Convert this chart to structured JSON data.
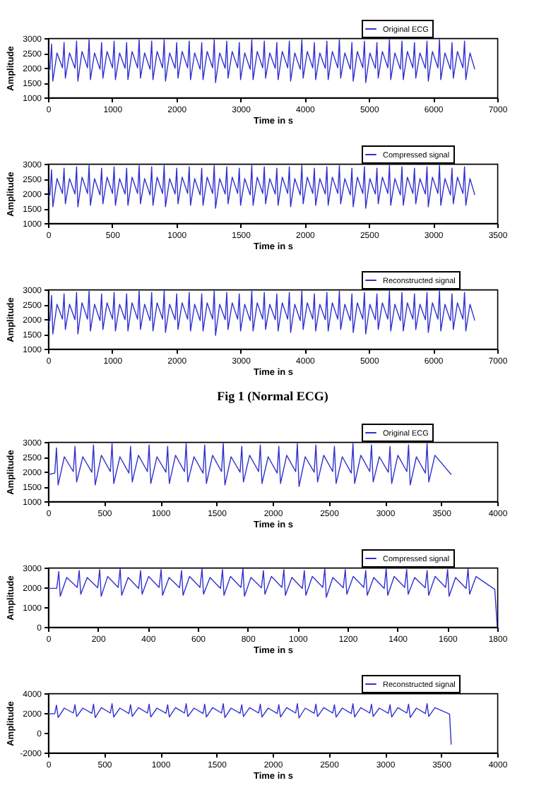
{
  "chart_data": [
    {
      "type": "line",
      "xlabel": "Time in s",
      "ylabel": "Amplitude",
      "xlim": [
        0,
        7000
      ],
      "xticks": [
        0,
        1000,
        2000,
        3000,
        4000,
        5000,
        6000,
        7000
      ],
      "ylim": [
        1000,
        3000
      ],
      "yticks": [
        1000,
        1500,
        2000,
        2500,
        3000
      ],
      "grid": false,
      "legend": "top right",
      "series": [
        {
          "name": "Original ECG",
          "color": "#3030d0",
          "x": [
            0,
            30,
            55,
            75,
            140,
            225,
            250,
            270,
            335,
            420,
            445,
            465,
            530,
            615,
            640,
            660,
            725,
            810,
            835,
            855,
            920,
            1005,
            1030,
            1050,
            1115,
            1200,
            1225,
            1245,
            1310,
            1395,
            1420,
            1440,
            1505,
            1590,
            1615,
            1635,
            1700,
            1785,
            1810,
            1830,
            1895,
            1980,
            2005,
            2025,
            2090,
            2175,
            2200,
            2220,
            2285,
            2370,
            2395,
            2415,
            2480,
            2565,
            2590,
            2610,
            2675,
            2760,
            2785,
            2805,
            2870,
            2955,
            2980,
            3000,
            3065,
            3150,
            3175,
            3195,
            3260,
            3345,
            3370,
            3390,
            3455,
            3540,
            3565,
            3585,
            3650,
            3735,
            3760,
            3780,
            3845,
            3930,
            3955,
            3975,
            4040,
            4125,
            4150,
            4170,
            4235,
            4320,
            4345,
            4365,
            4430,
            4515,
            4540,
            4560,
            4625,
            4710,
            4735,
            4755,
            4820,
            4905,
            4930,
            4950,
            5015,
            5100,
            5125,
            5145,
            5210,
            5295,
            5320,
            5340,
            5405,
            5490,
            5515,
            5535,
            5600,
            5685,
            5710,
            5730,
            5795,
            5880,
            5905,
            5925,
            5990,
            6075,
            6100,
            6120,
            6185,
            6270,
            6295,
            6315,
            6380,
            6465,
            6490,
            6510,
            6575,
            6650
          ],
          "values": [
            1900,
            1950,
            2800,
            1550,
            2500,
            2000,
            2850,
            1650,
            2500,
            1980,
            2900,
            1550,
            2550,
            2000,
            2950,
            1600,
            2500,
            1950,
            2850,
            1650,
            2550,
            2000,
            2900,
            1600,
            2500,
            1980,
            2850,
            1600,
            2550,
            2000,
            2950,
            1650,
            2500,
            1950,
            2900,
            1600,
            2550,
            2000,
            2950,
            1550,
            2500,
            1980,
            2850,
            1650,
            2550,
            2000,
            2900,
            1600,
            2500,
            1950,
            2850,
            1600,
            2550,
            2000,
            2950,
            1500,
            2500,
            1980,
            2900,
            1650,
            2550,
            2000,
            2850,
            1600,
            2500,
            1950,
            2950,
            1600,
            2550,
            2000,
            2900,
            1650,
            2500,
            1980,
            2850,
            1600,
            2550,
            2000,
            2900,
            1550,
            2500,
            1950,
            2950,
            1650,
            2550,
            2000,
            2850,
            1600,
            2500,
            1980,
            2900,
            1600,
            2550,
            2000,
            2950,
            1650,
            2500,
            1950,
            2850,
            1550,
            2550,
            2000,
            2900,
            1500,
            2500,
            1980,
            2850,
            1650,
            2550,
            2000,
            2950,
            1600,
            2500,
            1950,
            2900,
            1600,
            2550,
            2000,
            2850,
            1650,
            2500,
            1980,
            2900,
            1550,
            2550,
            2000,
            2950,
            1600,
            2500,
            1950,
            2850,
            1650,
            2550,
            2000,
            2900,
            1600,
            2500,
            1950
          ]
        }
      ]
    },
    {
      "type": "line",
      "xlabel": "Time in s",
      "ylabel": "Amplitude",
      "xlim": [
        0,
        3500
      ],
      "xticks": [
        0,
        500,
        1000,
        1500,
        2000,
        2500,
        3000,
        3500
      ],
      "ylim": [
        1000,
        3000
      ],
      "yticks": [
        1000,
        1500,
        2000,
        2500,
        3000
      ],
      "grid": false,
      "legend": "top right",
      "series": [
        {
          "name": "Compressed signal",
          "color": "#3030d0",
          "x": [
            0,
            15,
            27.5,
            37.5,
            70,
            112.5,
            125,
            135,
            167.5,
            210,
            222.5,
            232.5,
            265,
            307.5,
            320,
            330,
            362.5,
            405,
            417.5,
            427.5,
            460,
            502.5,
            515,
            525,
            557.5,
            600,
            612.5,
            622.5,
            655,
            697.5,
            710,
            720,
            752.5,
            795,
            807.5,
            817.5,
            850,
            892.5,
            905,
            915,
            947.5,
            990,
            1002.5,
            1012.5,
            1045,
            1087.5,
            1100,
            1110,
            1142.5,
            1185,
            1197.5,
            1207.5,
            1240,
            1282.5,
            1295,
            1305,
            1337.5,
            1380,
            1392.5,
            1402.5,
            1435,
            1477.5,
            1490,
            1500,
            1532.5,
            1575,
            1587.5,
            1597.5,
            1630,
            1672.5,
            1685,
            1695,
            1727.5,
            1770,
            1782.5,
            1792.5,
            1825,
            1867.5,
            1880,
            1890,
            1922.5,
            1965,
            1977.5,
            1987.5,
            2020,
            2062.5,
            2075,
            2085,
            2117.5,
            2160,
            2172.5,
            2182.5,
            2215,
            2257.5,
            2270,
            2280,
            2312.5,
            2355,
            2367.5,
            2377.5,
            2410,
            2452.5,
            2465,
            2475,
            2507.5,
            2550,
            2562.5,
            2572.5,
            2605,
            2647.5,
            2660,
            2670,
            2702.5,
            2745,
            2757.5,
            2767.5,
            2800,
            2842.5,
            2855,
            2865,
            2897.5,
            2940,
            2952.5,
            2962.5,
            2995,
            3037.5,
            3050,
            3060,
            3092.5,
            3135,
            3147.5,
            3157.5,
            3190,
            3232.5,
            3245,
            3255,
            3287.5,
            3325
          ],
          "values": [
            1900,
            1950,
            2800,
            1550,
            2500,
            2000,
            2850,
            1650,
            2500,
            1980,
            2900,
            1550,
            2550,
            2000,
            2950,
            1600,
            2500,
            1950,
            2850,
            1650,
            2550,
            2000,
            2900,
            1600,
            2500,
            1980,
            2850,
            1600,
            2550,
            2000,
            2950,
            1650,
            2500,
            1950,
            2900,
            1600,
            2550,
            2000,
            2950,
            1550,
            2500,
            1980,
            2850,
            1650,
            2550,
            2000,
            2900,
            1600,
            2500,
            1950,
            2850,
            1600,
            2550,
            2000,
            2950,
            1500,
            2500,
            1980,
            2900,
            1650,
            2550,
            2000,
            2850,
            1600,
            2500,
            1950,
            2950,
            1600,
            2550,
            2000,
            2900,
            1650,
            2500,
            1980,
            2850,
            1600,
            2550,
            2000,
            2900,
            1550,
            2500,
            1950,
            2950,
            1650,
            2550,
            2000,
            2850,
            1600,
            2500,
            1980,
            2900,
            1600,
            2550,
            2000,
            2950,
            1650,
            2500,
            1950,
            2850,
            1550,
            2550,
            2000,
            2900,
            1500,
            2500,
            1980,
            2850,
            1650,
            2550,
            2000,
            2950,
            1600,
            2500,
            1950,
            2900,
            1600,
            2550,
            2000,
            2850,
            1650,
            2500,
            1980,
            2900,
            1550,
            2550,
            2000,
            2950,
            1600,
            2500,
            1950,
            2850,
            1650,
            2550,
            2000,
            2900,
            1600,
            2500,
            1950
          ]
        }
      ]
    },
    {
      "type": "line",
      "xlabel": "Time in s",
      "ylabel": "Amplitude",
      "xlim": [
        0,
        7000
      ],
      "xticks": [
        0,
        1000,
        2000,
        3000,
        4000,
        5000,
        6000,
        7000
      ],
      "ylim": [
        1000,
        3000
      ],
      "yticks": [
        1000,
        1500,
        2000,
        2500,
        3000
      ],
      "grid": false,
      "legend": "top right",
      "annotations": [
        "Fig 1 (Normal ECG)"
      ],
      "series": [
        {
          "name": "Reconstructed signal",
          "color": "#3030d0",
          "x": [
            0,
            30,
            55,
            75,
            140,
            225,
            250,
            270,
            335,
            420,
            445,
            465,
            530,
            615,
            640,
            660,
            725,
            810,
            835,
            855,
            920,
            1005,
            1030,
            1050,
            1115,
            1200,
            1225,
            1245,
            1310,
            1395,
            1420,
            1440,
            1505,
            1590,
            1615,
            1635,
            1700,
            1785,
            1810,
            1830,
            1895,
            1980,
            2005,
            2025,
            2090,
            2175,
            2200,
            2220,
            2285,
            2370,
            2395,
            2415,
            2480,
            2565,
            2590,
            2610,
            2675,
            2760,
            2785,
            2805,
            2870,
            2955,
            2980,
            3000,
            3065,
            3150,
            3175,
            3195,
            3260,
            3345,
            3370,
            3390,
            3455,
            3540,
            3565,
            3585,
            3650,
            3735,
            3760,
            3780,
            3845,
            3930,
            3955,
            3975,
            4040,
            4125,
            4150,
            4170,
            4235,
            4320,
            4345,
            4365,
            4430,
            4515,
            4540,
            4560,
            4625,
            4710,
            4735,
            4755,
            4820,
            4905,
            4930,
            4950,
            5015,
            5100,
            5125,
            5145,
            5210,
            5295,
            5320,
            5340,
            5405,
            5490,
            5515,
            5535,
            5600,
            5685,
            5710,
            5730,
            5795,
            5880,
            5905,
            5925,
            5990,
            6075,
            6100,
            6120,
            6185,
            6270,
            6295,
            6315,
            6380,
            6465,
            6490,
            6510,
            6575,
            6650
          ],
          "values": [
            1900,
            1950,
            2800,
            1500,
            2500,
            2000,
            2850,
            1650,
            2500,
            1980,
            2900,
            1500,
            2550,
            2000,
            2950,
            1600,
            2500,
            1950,
            2850,
            1650,
            2550,
            2000,
            2900,
            1600,
            2500,
            1980,
            2850,
            1600,
            2550,
            2000,
            2950,
            1650,
            2500,
            1950,
            2900,
            1600,
            2550,
            2000,
            2950,
            1550,
            2500,
            1980,
            2850,
            1650,
            2550,
            2000,
            2900,
            1600,
            2500,
            1950,
            2850,
            1600,
            2550,
            2000,
            2950,
            1450,
            2500,
            1980,
            2900,
            1650,
            2550,
            2000,
            2850,
            1600,
            2500,
            1950,
            2950,
            1600,
            2550,
            2000,
            2900,
            1650,
            2500,
            1980,
            2850,
            1600,
            2550,
            2000,
            2900,
            1550,
            2500,
            1950,
            2950,
            1650,
            2550,
            2000,
            2850,
            1600,
            2500,
            1980,
            2900,
            1600,
            2550,
            2000,
            2950,
            1650,
            2500,
            1950,
            2850,
            1550,
            2550,
            2000,
            2900,
            1500,
            2500,
            1980,
            2850,
            1650,
            2550,
            2000,
            2950,
            1600,
            2500,
            1950,
            2900,
            1600,
            2550,
            2000,
            2850,
            1650,
            2500,
            1980,
            2900,
            1550,
            2550,
            2000,
            2950,
            1600,
            2500,
            1950,
            2850,
            1650,
            2550,
            2000,
            2900,
            1600,
            2500,
            1950
          ]
        }
      ]
    },
    {
      "type": "line",
      "xlabel": "Time in s",
      "ylabel": "Amplitude",
      "xlim": [
        0,
        4000
      ],
      "xticks": [
        0,
        500,
        1000,
        1500,
        2000,
        2500,
        3000,
        3500,
        4000
      ],
      "ylim": [
        1000,
        3000
      ],
      "yticks": [
        1000,
        1500,
        2000,
        2500,
        3000
      ],
      "grid": false,
      "legend": "top right",
      "series": [
        {
          "name": "Original ECG",
          "color": "#3030d0",
          "x": [
            0,
            60,
            75,
            90,
            145,
            225,
            240,
            255,
            310,
            390,
            405,
            420,
            475,
            555,
            570,
            585,
            640,
            720,
            735,
            750,
            805,
            885,
            900,
            915,
            970,
            1050,
            1065,
            1080,
            1135,
            1215,
            1230,
            1245,
            1300,
            1380,
            1395,
            1410,
            1465,
            1545,
            1560,
            1575,
            1630,
            1710,
            1725,
            1740,
            1795,
            1875,
            1890,
            1905,
            1960,
            2040,
            2055,
            2070,
            2125,
            2205,
            2220,
            2235,
            2290,
            2370,
            2385,
            2400,
            2455,
            2535,
            2550,
            2565,
            2620,
            2700,
            2715,
            2730,
            2785,
            2865,
            2880,
            2895,
            2950,
            3030,
            3045,
            3060,
            3115,
            3195,
            3210,
            3225,
            3280,
            3360,
            3375,
            3390,
            3445,
            3590
          ],
          "values": [
            1900,
            1950,
            2800,
            1550,
            2500,
            2000,
            2850,
            1650,
            2500,
            1980,
            2900,
            1550,
            2550,
            2000,
            2950,
            1600,
            2500,
            1950,
            2850,
            1650,
            2550,
            2000,
            2900,
            1600,
            2500,
            1980,
            2850,
            1600,
            2550,
            2000,
            2950,
            1650,
            2500,
            1950,
            2900,
            1600,
            2550,
            2000,
            2950,
            1550,
            2500,
            1980,
            2850,
            1650,
            2550,
            2000,
            2900,
            1600,
            2500,
            1950,
            2850,
            1600,
            2550,
            2000,
            2950,
            1500,
            2500,
            1980,
            2900,
            1650,
            2550,
            2000,
            2850,
            1600,
            2500,
            1950,
            2950,
            1600,
            2550,
            2000,
            2900,
            1650,
            2500,
            1980,
            2850,
            1600,
            2550,
            2000,
            2900,
            1550,
            2500,
            1950,
            2950,
            1650,
            2550,
            1900
          ]
        }
      ]
    },
    {
      "type": "line",
      "xlabel": "Time in s",
      "ylabel": "Amplitude",
      "xlim": [
        0,
        1800
      ],
      "xticks": [
        0,
        200,
        400,
        600,
        800,
        1000,
        1200,
        1400,
        1600,
        1800
      ],
      "ylim": [
        0,
        3000
      ],
      "yticks": [
        0,
        1000,
        2000,
        3000
      ],
      "grid": false,
      "legend": "top right",
      "series": [
        {
          "name": "Compressed signal",
          "color": "#3030d0",
          "x": [
            0,
            35,
            43,
            49,
            75,
            117,
            125,
            131,
            157,
            199,
            207,
            213,
            239,
            281,
            289,
            295,
            321,
            363,
            371,
            377,
            403,
            445,
            453,
            459,
            485,
            527,
            535,
            541,
            567,
            609,
            617,
            623,
            649,
            691,
            699,
            705,
            731,
            773,
            781,
            787,
            813,
            855,
            863,
            869,
            895,
            937,
            945,
            951,
            977,
            1019,
            1027,
            1033,
            1059,
            1101,
            1109,
            1115,
            1141,
            1183,
            1191,
            1197,
            1223,
            1265,
            1273,
            1279,
            1305,
            1347,
            1355,
            1361,
            1387,
            1429,
            1437,
            1443,
            1469,
            1511,
            1519,
            1525,
            1551,
            1593,
            1601,
            1607,
            1633,
            1675,
            1683,
            1689,
            1715,
            1790,
            1800
          ],
          "values": [
            1950,
            1950,
            2800,
            1550,
            2500,
            2000,
            2850,
            1650,
            2500,
            1980,
            2900,
            1550,
            2550,
            2000,
            2950,
            1600,
            2500,
            1950,
            2850,
            1650,
            2550,
            2000,
            2900,
            1600,
            2500,
            1980,
            2850,
            1600,
            2550,
            2000,
            2950,
            1650,
            2500,
            1950,
            2900,
            1600,
            2550,
            2000,
            2950,
            1550,
            2500,
            1980,
            2850,
            1650,
            2550,
            2000,
            2900,
            1600,
            2500,
            1950,
            2850,
            1600,
            2550,
            2000,
            2950,
            1500,
            2500,
            1980,
            2900,
            1650,
            2550,
            2000,
            2850,
            1600,
            2500,
            1950,
            2950,
            1600,
            2550,
            2000,
            2900,
            1650,
            2500,
            1980,
            2850,
            1600,
            2550,
            2000,
            2900,
            1550,
            2500,
            1950,
            2950,
            1650,
            2550,
            1900,
            0
          ]
        }
      ]
    },
    {
      "type": "line",
      "xlabel": "Time in s",
      "ylabel": "Amplitude",
      "xlim": [
        0,
        4000
      ],
      "xticks": [
        0,
        500,
        1000,
        1500,
        2000,
        2500,
        3000,
        3500,
        4000
      ],
      "ylim": [
        -2000,
        4000
      ],
      "yticks": [
        -2000,
        0,
        2000,
        4000
      ],
      "grid": false,
      "legend": "top right",
      "series": [
        {
          "name": "Reconstructed signal",
          "color": "#3030d0",
          "x": [
            0,
            60,
            75,
            90,
            145,
            225,
            240,
            255,
            310,
            390,
            405,
            420,
            475,
            555,
            570,
            585,
            640,
            720,
            735,
            750,
            805,
            885,
            900,
            915,
            970,
            1050,
            1065,
            1080,
            1135,
            1215,
            1230,
            1245,
            1300,
            1380,
            1395,
            1410,
            1465,
            1545,
            1560,
            1575,
            1630,
            1710,
            1725,
            1740,
            1795,
            1875,
            1890,
            1905,
            1960,
            2040,
            2055,
            2070,
            2125,
            2205,
            2220,
            2235,
            2290,
            2370,
            2385,
            2400,
            2455,
            2535,
            2550,
            2565,
            2620,
            2700,
            2715,
            2730,
            2785,
            2865,
            2880,
            2895,
            2950,
            3030,
            3045,
            3060,
            3115,
            3195,
            3210,
            3225,
            3280,
            3360,
            3375,
            3390,
            3445,
            3575,
            3590
          ],
          "values": [
            1900,
            1950,
            2800,
            1550,
            2500,
            2000,
            2850,
            1650,
            2500,
            1980,
            2900,
            1550,
            2550,
            2000,
            2950,
            1600,
            2500,
            1950,
            2850,
            1650,
            2550,
            2000,
            2900,
            1600,
            2500,
            1980,
            2850,
            1600,
            2550,
            2000,
            2950,
            1650,
            2500,
            1950,
            2900,
            1600,
            2550,
            2000,
            2950,
            1550,
            2500,
            1980,
            2850,
            1650,
            2550,
            2000,
            2900,
            1600,
            2500,
            1950,
            2850,
            1600,
            2550,
            2000,
            2950,
            1500,
            2500,
            1980,
            2900,
            1650,
            2550,
            2000,
            2850,
            1600,
            2500,
            1950,
            2950,
            1600,
            2550,
            2000,
            2900,
            1650,
            2500,
            1980,
            2850,
            1600,
            2550,
            2000,
            2900,
            1550,
            2500,
            1950,
            2950,
            1650,
            2550,
            1900,
            -1200
          ]
        }
      ]
    }
  ]
}
